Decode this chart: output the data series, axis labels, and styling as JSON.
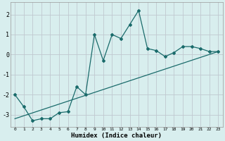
{
  "xlabel": "Humidex (Indice chaleur)",
  "bg_color": "#d8eeee",
  "grid_color": "#c0c8d0",
  "line_color": "#1a6b6b",
  "xlim": [
    -0.5,
    23.5
  ],
  "ylim": [
    -3.6,
    2.6
  ],
  "yticks": [
    -3,
    -2,
    -1,
    0,
    1,
    2
  ],
  "xticks": [
    0,
    1,
    2,
    3,
    4,
    5,
    6,
    7,
    8,
    9,
    10,
    11,
    12,
    13,
    14,
    15,
    16,
    17,
    18,
    19,
    20,
    21,
    22,
    23
  ],
  "scatter_x": [
    0,
    1,
    2,
    3,
    4,
    5,
    6,
    7,
    8,
    9,
    10,
    11,
    12,
    13,
    14,
    15,
    16,
    17,
    18,
    19,
    20,
    21,
    22,
    23
  ],
  "scatter_y": [
    -2.0,
    -2.6,
    -3.3,
    -3.2,
    -3.2,
    -2.9,
    -2.85,
    -1.6,
    -2.0,
    1.0,
    -0.3,
    1.0,
    0.8,
    1.5,
    2.2,
    0.3,
    0.2,
    -0.1,
    0.1,
    0.4,
    0.4,
    0.3,
    0.15,
    0.15
  ],
  "trend_x": [
    0,
    23
  ],
  "trend_y": [
    -3.2,
    0.15
  ]
}
